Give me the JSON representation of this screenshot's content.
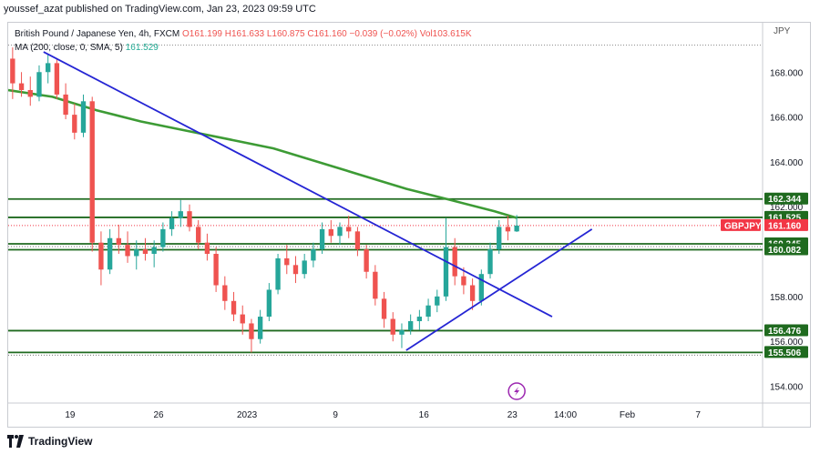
{
  "header": {
    "credit": "youssef_azat published on TradingView.com, Jan 23, 2023 09:59 UTC"
  },
  "legend": {
    "symbol_title": "British Pound / Japanese Yen, 4h, FXCM",
    "ohlc": "O161.199 H161.633 L160.875 C161.160 −0.039 (−0.02%) Vol103.615K",
    "ma_title": "MA (200, close, 0, SMA, 5)",
    "ma_value": "161.529"
  },
  "footer": {
    "brand": "TradingView"
  },
  "colors": {
    "up": "#26a69a",
    "down": "#ef5350",
    "ma": "#3d9b35",
    "trend": "#2525d4",
    "level": "#1f6a1f",
    "price_tag": "#f23645"
  },
  "chart_data": {
    "type": "candlestick",
    "currency_label": "JPY",
    "y_ticks": [
      154,
      156,
      158,
      160,
      162,
      164,
      166,
      168
    ],
    "ylim": [
      153.25,
      170.2
    ],
    "x_ticks": [
      {
        "i": 7,
        "label": "19"
      },
      {
        "i": 17,
        "label": "26"
      },
      {
        "i": 27,
        "label": "2023"
      },
      {
        "i": 37,
        "label": "9"
      },
      {
        "i": 47,
        "label": "16"
      },
      {
        "i": 57,
        "label": "23"
      },
      {
        "i": 63,
        "label": "14:00"
      },
      {
        "i": 70,
        "label": "Feb"
      },
      {
        "i": 78,
        "label": "7"
      }
    ],
    "xlim": [
      0,
      85.3
    ],
    "levels": [
      162.344,
      161.525,
      160.345,
      160.082,
      156.476,
      155.506
    ],
    "level_labels": [
      "162.344",
      "161.525",
      "160.345",
      "160.082",
      "156.476",
      "155.506"
    ],
    "last_price": 161.16,
    "last_price_label": "161.160",
    "symbol_tag": "GBPJPY",
    "dotted_reference": 169.2,
    "trendlines": [
      {
        "from": [
          4,
          168.9
        ],
        "to": [
          61.5,
          157.1
        ]
      },
      {
        "from": [
          45,
          155.6
        ],
        "to": [
          66,
          161.0
        ]
      }
    ],
    "ma_points": [
      [
        0,
        167.2
      ],
      [
        5,
        166.9
      ],
      [
        10,
        166.3
      ],
      [
        15,
        165.8
      ],
      [
        20,
        165.4
      ],
      [
        25,
        165.0
      ],
      [
        30,
        164.6
      ],
      [
        35,
        164.0
      ],
      [
        40,
        163.4
      ],
      [
        45,
        162.8
      ],
      [
        50,
        162.3
      ],
      [
        55,
        161.8
      ],
      [
        57.5,
        161.5
      ]
    ],
    "candles": [
      [
        168.6,
        169.1,
        166.8,
        167.5
      ],
      [
        167.5,
        168.0,
        166.9,
        167.2
      ],
      [
        167.2,
        167.8,
        166.5,
        166.9
      ],
      [
        166.9,
        168.3,
        166.7,
        168.0
      ],
      [
        168.0,
        168.8,
        167.5,
        168.4
      ],
      [
        168.4,
        168.6,
        166.8,
        167.0
      ],
      [
        167.0,
        167.5,
        165.9,
        166.1
      ],
      [
        166.1,
        166.6,
        165.0,
        165.3
      ],
      [
        165.3,
        167.0,
        165.1,
        166.7
      ],
      [
        166.7,
        166.9,
        160.0,
        160.4
      ],
      [
        160.4,
        160.9,
        158.5,
        159.2
      ],
      [
        159.2,
        161.0,
        159.0,
        160.6
      ],
      [
        160.6,
        161.2,
        159.9,
        160.3
      ],
      [
        160.3,
        160.9,
        159.5,
        159.8
      ],
      [
        159.8,
        160.5,
        159.2,
        160.1
      ],
      [
        160.1,
        160.6,
        159.6,
        159.9
      ],
      [
        159.9,
        160.5,
        159.3,
        160.2
      ],
      [
        160.2,
        161.3,
        160.0,
        161.0
      ],
      [
        161.0,
        161.8,
        160.7,
        161.5
      ],
      [
        161.5,
        162.3,
        161.1,
        161.8
      ],
      [
        161.8,
        162.1,
        160.9,
        161.1
      ],
      [
        161.1,
        161.4,
        160.1,
        160.4
      ],
      [
        160.4,
        160.8,
        159.6,
        159.9
      ],
      [
        159.9,
        160.2,
        158.2,
        158.5
      ],
      [
        158.5,
        158.9,
        157.4,
        157.8
      ],
      [
        157.8,
        158.2,
        156.9,
        157.2
      ],
      [
        157.2,
        157.6,
        156.3,
        156.8
      ],
      [
        156.8,
        157.0,
        155.5,
        156.1
      ],
      [
        156.1,
        157.4,
        155.9,
        157.1
      ],
      [
        157.1,
        158.6,
        156.9,
        158.3
      ],
      [
        158.3,
        159.9,
        158.1,
        159.7
      ],
      [
        159.7,
        160.3,
        159.0,
        159.4
      ],
      [
        159.4,
        159.8,
        158.6,
        159.0
      ],
      [
        159.0,
        159.9,
        158.8,
        159.6
      ],
      [
        159.6,
        160.4,
        159.3,
        160.1
      ],
      [
        160.1,
        161.3,
        159.9,
        161.0
      ],
      [
        161.0,
        161.4,
        160.4,
        160.7
      ],
      [
        160.7,
        161.3,
        160.3,
        161.1
      ],
      [
        161.1,
        161.6,
        160.6,
        160.9
      ],
      [
        160.9,
        161.1,
        159.8,
        160.1
      ],
      [
        160.1,
        160.3,
        158.8,
        159.1
      ],
      [
        159.1,
        159.4,
        157.6,
        157.9
      ],
      [
        157.9,
        158.2,
        156.6,
        157.0
      ],
      [
        157.0,
        157.3,
        156.0,
        156.3
      ],
      [
        156.3,
        156.8,
        155.7,
        156.5
      ],
      [
        156.5,
        157.2,
        156.3,
        156.9
      ],
      [
        156.9,
        157.4,
        156.5,
        157.1
      ],
      [
        157.1,
        157.9,
        156.9,
        157.6
      ],
      [
        157.6,
        158.3,
        157.3,
        158.0
      ],
      [
        158.0,
        161.5,
        157.8,
        160.2
      ],
      [
        160.2,
        160.6,
        158.5,
        158.9
      ],
      [
        158.9,
        159.3,
        158.1,
        158.5
      ],
      [
        158.5,
        158.8,
        157.4,
        157.8
      ],
      [
        157.8,
        159.2,
        157.6,
        159.0
      ],
      [
        159.0,
        160.4,
        158.8,
        160.1
      ],
      [
        160.1,
        161.4,
        159.9,
        161.1
      ],
      [
        161.1,
        161.6,
        160.5,
        160.9
      ],
      [
        160.9,
        161.633,
        160.875,
        161.16
      ]
    ]
  }
}
